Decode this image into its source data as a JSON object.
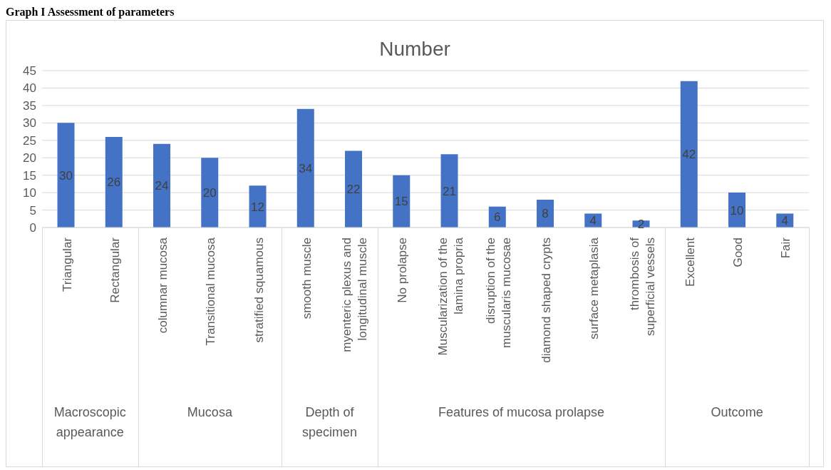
{
  "chart_data": {
    "type": "bar",
    "title": "Number",
    "categories": [
      "Triangular",
      "Rectangular",
      "columnar mucosa",
      "Transitional mucosa",
      "stratified squamous",
      "smooth muscle",
      "myenteric plexus and longitudinal muscle",
      "No prolapse",
      "Muscularization of the lamina propria",
      "disruption of the muscularis mucosae",
      "diamond shaped crypts",
      "surface metaplasia",
      "thrombosis of superficial vessels",
      "Excellent",
      "Good",
      "Fair"
    ],
    "values": [
      30,
      26,
      24,
      20,
      12,
      34,
      22,
      15,
      21,
      6,
      8,
      4,
      2,
      42,
      10,
      4
    ],
    "color": "#4472c4",
    "ylim": [
      0,
      45
    ],
    "yticks": [
      0,
      5,
      10,
      15,
      20,
      25,
      30,
      35,
      40,
      45
    ],
    "grid": "y",
    "data_labels": true,
    "legend": false,
    "annotations": [
      "Graph I Assessment of parameters",
      "Macroscopic appearance",
      "Mucosa",
      "Depth of specimen",
      "Features of mucosa prolapse",
      "Outcome"
    ]
  }
}
